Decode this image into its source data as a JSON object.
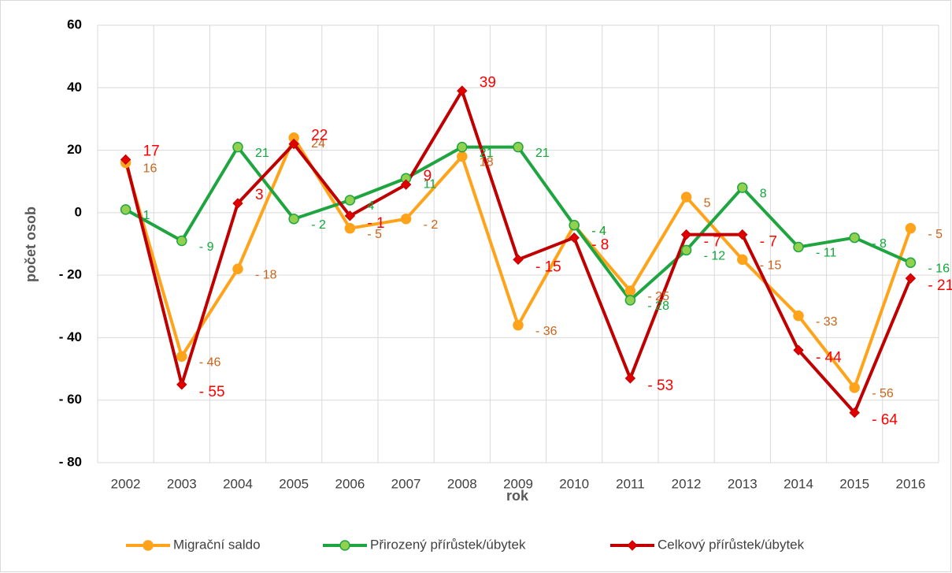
{
  "chart_data": {
    "type": "line",
    "x_label": "rok",
    "y_label": "počet osob",
    "categories": [
      "2002",
      "2003",
      "2004",
      "2005",
      "2006",
      "2007",
      "2008",
      "2009",
      "2010",
      "2011",
      "2012",
      "2013",
      "2014",
      "2015",
      "2016"
    ],
    "series": [
      {
        "name": "Migrační saldo",
        "color": "#ffa31a",
        "label_color": "#c9641a",
        "marker": "circle",
        "marker_fill": "#ffa31a",
        "values": [
          16,
          -46,
          -18,
          24,
          -5,
          -2,
          18,
          -36,
          -4,
          -25,
          5,
          -15,
          -33,
          -56,
          -5
        ],
        "value_labels": [
          "16",
          "- 46",
          "- 18",
          "24",
          "- 5",
          "- 2",
          "18",
          "- 36",
          "- 4",
          "- 25",
          "5",
          "- 15",
          "- 33",
          "- 56",
          "- 5"
        ]
      },
      {
        "name": "Přirozený přírůstek/úbytek",
        "color": "#1fa540",
        "label_color": "#10a83a",
        "marker": "circle",
        "marker_fill": "#92d050",
        "values": [
          1,
          -9,
          21,
          -2,
          4,
          11,
          21,
          21,
          -4,
          -28,
          -12,
          8,
          -11,
          -8,
          -16
        ],
        "value_labels": [
          "1",
          "- 9",
          "21",
          "- 2",
          "4",
          "11",
          "21",
          "21",
          "- 4",
          "- 28",
          "- 12",
          "8",
          "- 11",
          "- 8",
          "- 16"
        ]
      },
      {
        "name": "Celkový přírůstek/úbytek",
        "color": "#c00000",
        "label_color": "#ff0000",
        "marker": "diamond",
        "marker_fill": "#e00000",
        "values": [
          17,
          -55,
          3,
          22,
          -1,
          9,
          39,
          -15,
          -8,
          -53,
          -7,
          -7,
          -44,
          -64,
          -21
        ],
        "value_labels": [
          "17",
          "- 55",
          "3",
          "22",
          "- 1",
          "9",
          "39",
          "- 15",
          "- 8",
          "- 53",
          "- 7",
          "- 7",
          "- 44",
          "- 64",
          "- 21"
        ]
      }
    ],
    "ylim": [
      -80,
      60
    ],
    "yticks": [
      {
        "value": -80,
        "label": "- 80"
      },
      {
        "value": -60,
        "label": "- 60"
      },
      {
        "value": -40,
        "label": "- 40"
      },
      {
        "value": -20,
        "label": "- 20"
      },
      0,
      20,
      40,
      60
    ],
    "grid": true,
    "legend": "bottom"
  }
}
